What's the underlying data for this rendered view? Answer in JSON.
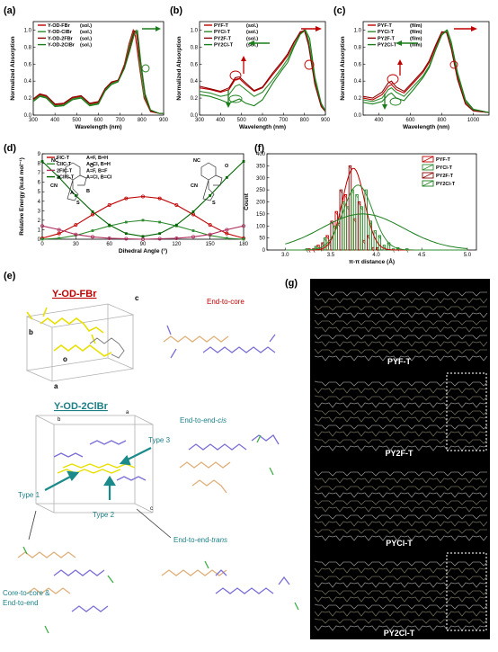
{
  "panel_labels": {
    "a": "(a)",
    "b": "(b)",
    "c": "(c)",
    "d": "(d)",
    "e": "(e)",
    "f": "(f)",
    "g": "(g)"
  },
  "chart_data": [
    {
      "id": "a",
      "type": "line",
      "xlabel": "Wavelength (nm)",
      "ylabel": "Normalized Absorption",
      "xlim": [
        300,
        900
      ],
      "ylim": [
        0,
        1.1
      ],
      "xticks": [
        300,
        400,
        500,
        600,
        700,
        800,
        900
      ],
      "yticks": [
        "0.0",
        "0.2",
        "0.4",
        "0.6",
        "0.8",
        "1.0"
      ],
      "legend_position": "top-left",
      "series": [
        {
          "name": "Y-OD-FBr",
          "tag": "(sol.)",
          "color": "#c00000",
          "x": [
            300,
            330,
            360,
            400,
            440,
            480,
            520,
            560,
            600,
            630,
            660,
            690,
            720,
            740,
            760,
            770,
            790,
            810,
            840,
            880,
            900
          ],
          "y": [
            0.18,
            0.24,
            0.22,
            0.12,
            0.13,
            0.2,
            0.22,
            0.13,
            0.15,
            0.3,
            0.38,
            0.4,
            0.6,
            0.83,
            1.0,
            0.93,
            0.55,
            0.2,
            0.04,
            0.02,
            0.02
          ]
        },
        {
          "name": "Y-OD-ClBr",
          "tag": "(sol.)",
          "color": "#2e8b2e",
          "x": [
            300,
            330,
            360,
            400,
            440,
            480,
            520,
            560,
            600,
            630,
            660,
            690,
            720,
            740,
            760,
            775,
            790,
            810,
            840,
            880,
            900
          ],
          "y": [
            0.17,
            0.23,
            0.21,
            0.11,
            0.12,
            0.19,
            0.21,
            0.12,
            0.14,
            0.29,
            0.37,
            0.4,
            0.58,
            0.8,
            0.97,
            1.0,
            0.6,
            0.22,
            0.05,
            0.02,
            0.02
          ]
        },
        {
          "name": "Y-OD-2FBr",
          "tag": "(sol.)",
          "color": "#8b0000",
          "x": [
            300,
            330,
            360,
            400,
            440,
            480,
            520,
            560,
            600,
            630,
            660,
            690,
            720,
            745,
            765,
            775,
            795,
            815,
            840,
            880,
            900
          ],
          "y": [
            0.19,
            0.25,
            0.23,
            0.13,
            0.14,
            0.21,
            0.23,
            0.14,
            0.16,
            0.31,
            0.39,
            0.41,
            0.57,
            0.8,
            0.99,
            0.97,
            0.6,
            0.22,
            0.05,
            0.02,
            0.02
          ]
        },
        {
          "name": "Y-OD-2ClBr",
          "tag": "(sol.)",
          "color": "#1a7f1a",
          "x": [
            300,
            330,
            360,
            400,
            440,
            480,
            520,
            560,
            600,
            630,
            660,
            690,
            720,
            745,
            765,
            780,
            795,
            815,
            840,
            880,
            900
          ],
          "y": [
            0.16,
            0.22,
            0.2,
            0.1,
            0.11,
            0.18,
            0.2,
            0.11,
            0.13,
            0.28,
            0.36,
            0.39,
            0.55,
            0.76,
            0.95,
            0.99,
            0.63,
            0.25,
            0.06,
            0.02,
            0.02
          ]
        }
      ]
    },
    {
      "id": "b",
      "type": "line",
      "xlabel": "Wavelength (nm)",
      "ylabel": "Normalized Absorption",
      "xlim": [
        300,
        900
      ],
      "ylim": [
        0,
        1.1
      ],
      "xticks": [
        300,
        400,
        500,
        600,
        700,
        800,
        900
      ],
      "yticks": [
        "0.0",
        "0.2",
        "0.4",
        "0.6",
        "0.8",
        "1.0"
      ],
      "legend_position": "top-left",
      "series": [
        {
          "name": "PYF-T",
          "tag": "(sol.)",
          "color": "#c00000",
          "x": [
            300,
            350,
            400,
            440,
            470,
            490,
            520,
            560,
            600,
            650,
            690,
            720,
            750,
            780,
            800,
            820,
            850,
            880,
            900
          ],
          "y": [
            0.32,
            0.3,
            0.27,
            0.3,
            0.42,
            0.43,
            0.36,
            0.28,
            0.32,
            0.48,
            0.6,
            0.7,
            0.85,
            0.98,
            0.99,
            0.85,
            0.4,
            0.12,
            0.05
          ]
        },
        {
          "name": "PYCl-T",
          "tag": "(sol.)",
          "color": "#2e8b2e",
          "x": [
            300,
            350,
            400,
            440,
            470,
            490,
            520,
            560,
            600,
            650,
            690,
            720,
            750,
            780,
            805,
            820,
            850,
            880,
            900
          ],
          "y": [
            0.28,
            0.26,
            0.22,
            0.24,
            0.34,
            0.36,
            0.3,
            0.22,
            0.27,
            0.42,
            0.55,
            0.66,
            0.82,
            0.96,
            1.0,
            0.88,
            0.42,
            0.13,
            0.05
          ]
        },
        {
          "name": "PY2F-T",
          "tag": "(sol.)",
          "color": "#8b0000",
          "x": [
            300,
            350,
            400,
            440,
            470,
            490,
            520,
            560,
            600,
            650,
            690,
            720,
            750,
            780,
            800,
            820,
            850,
            880,
            900
          ],
          "y": [
            0.34,
            0.31,
            0.28,
            0.32,
            0.44,
            0.45,
            0.38,
            0.29,
            0.33,
            0.5,
            0.62,
            0.72,
            0.86,
            0.97,
            1.0,
            0.82,
            0.36,
            0.1,
            0.04
          ]
        },
        {
          "name": "PY2Cl-T",
          "tag": "(sol.)",
          "color": "#1a7f1a",
          "x": [
            300,
            350,
            400,
            440,
            470,
            490,
            520,
            560,
            600,
            650,
            690,
            720,
            750,
            780,
            805,
            825,
            850,
            880,
            900
          ],
          "y": [
            0.24,
            0.22,
            0.18,
            0.14,
            0.17,
            0.19,
            0.14,
            0.11,
            0.18,
            0.38,
            0.52,
            0.62,
            0.8,
            0.95,
            1.0,
            0.9,
            0.45,
            0.14,
            0.05
          ]
        }
      ]
    },
    {
      "id": "c",
      "type": "line",
      "xlabel": "Wavelength (nm)",
      "ylabel": "Normalized Absorption",
      "xlim": [
        300,
        1100
      ],
      "ylim": [
        0,
        1.1
      ],
      "xticks": [
        400,
        600,
        800,
        1000
      ],
      "yticks": [
        "0.0",
        "0.2",
        "0.4",
        "0.6",
        "0.8",
        "1.0"
      ],
      "legend_position": "top-left",
      "series": [
        {
          "name": "PYF-T",
          "tag": "(film)",
          "color": "#c00000",
          "x": [
            300,
            360,
            420,
            460,
            480,
            510,
            560,
            620,
            680,
            720,
            760,
            800,
            830,
            860,
            900,
            950,
            1000,
            1100
          ],
          "y": [
            0.2,
            0.18,
            0.24,
            0.34,
            0.36,
            0.3,
            0.26,
            0.38,
            0.5,
            0.62,
            0.8,
            0.97,
            0.99,
            0.8,
            0.45,
            0.15,
            0.06,
            0.03
          ]
        },
        {
          "name": "PYCl-T",
          "tag": "(film)",
          "color": "#2e8b2e",
          "x": [
            300,
            360,
            420,
            460,
            480,
            510,
            560,
            620,
            680,
            720,
            760,
            800,
            830,
            860,
            900,
            950,
            1000,
            1100
          ],
          "y": [
            0.18,
            0.16,
            0.2,
            0.3,
            0.32,
            0.27,
            0.22,
            0.34,
            0.46,
            0.58,
            0.77,
            0.95,
            1.0,
            0.82,
            0.48,
            0.16,
            0.06,
            0.03
          ]
        },
        {
          "name": "PY2F-T",
          "tag": "(film)",
          "color": "#8b0000",
          "x": [
            300,
            360,
            420,
            460,
            480,
            510,
            560,
            620,
            680,
            720,
            760,
            800,
            830,
            860,
            900,
            950,
            1000,
            1100
          ],
          "y": [
            0.22,
            0.2,
            0.27,
            0.38,
            0.4,
            0.33,
            0.28,
            0.4,
            0.52,
            0.64,
            0.82,
            0.98,
            0.97,
            0.78,
            0.42,
            0.13,
            0.05,
            0.03
          ]
        },
        {
          "name": "PY2Cl-T",
          "tag": "(film)",
          "color": "#1a7f1a",
          "x": [
            300,
            360,
            420,
            460,
            480,
            510,
            560,
            620,
            680,
            720,
            760,
            800,
            835,
            860,
            900,
            950,
            1000,
            1100
          ],
          "y": [
            0.15,
            0.13,
            0.16,
            0.24,
            0.26,
            0.2,
            0.17,
            0.3,
            0.44,
            0.56,
            0.76,
            0.94,
            1.0,
            0.86,
            0.5,
            0.18,
            0.07,
            0.03
          ]
        }
      ]
    },
    {
      "id": "d",
      "type": "line",
      "xlabel": "Dihedral Angle (°)",
      "ylabel": "Relative Energy (kcal mol⁻¹)",
      "xlim": [
        0,
        180
      ],
      "ylim": [
        0,
        9
      ],
      "xticks": [
        0,
        30,
        60,
        90,
        120,
        150,
        180
      ],
      "yticks": [
        0,
        1,
        2,
        3,
        4,
        5,
        6,
        7,
        8,
        9
      ],
      "legend_position": "top-center",
      "series": [
        {
          "name": "FIC-T",
          "label": "A=F, B=H",
          "color": "#c00000",
          "x": [
            0,
            15,
            30,
            45,
            60,
            75,
            90,
            105,
            120,
            135,
            150,
            165,
            180
          ],
          "y": [
            0.1,
            0.6,
            1.5,
            2.6,
            3.6,
            4.3,
            4.5,
            4.3,
            3.6,
            2.6,
            1.5,
            0.6,
            0.1
          ]
        },
        {
          "name": "ClIC-T",
          "label": "A=Cl, B=H",
          "color": "#2e8b2e",
          "x": [
            0,
            15,
            30,
            45,
            60,
            75,
            90,
            105,
            120,
            135,
            150,
            165,
            180
          ],
          "y": [
            0.0,
            0.1,
            0.4,
            0.9,
            1.4,
            1.8,
            2.0,
            1.8,
            1.4,
            0.9,
            0.4,
            0.1,
            0.0
          ]
        },
        {
          "name": "2FIC-T",
          "label": "A=F, B=F",
          "color": "#b03060",
          "x": [
            0,
            15,
            30,
            45,
            60,
            75,
            90,
            105,
            120,
            135,
            150,
            165,
            180
          ],
          "y": [
            1.4,
            1.0,
            0.5,
            0.25,
            0.1,
            0.05,
            0.0,
            0.05,
            0.1,
            0.25,
            0.5,
            1.0,
            1.4
          ]
        },
        {
          "name": "2ClIC-T",
          "label": "A=Cl, B=Cl",
          "color": "#006400",
          "x": [
            0,
            15,
            30,
            45,
            60,
            75,
            90,
            105,
            120,
            135,
            150,
            165,
            180
          ],
          "y": [
            8.2,
            6.5,
            4.6,
            2.9,
            1.5,
            0.6,
            0.3,
            0.6,
            1.5,
            2.9,
            4.6,
            6.5,
            8.2
          ]
        }
      ],
      "annotations": [
        "NC",
        "NC",
        "A",
        "B",
        "S",
        "S",
        "O",
        "O",
        "CN",
        "CN"
      ]
    },
    {
      "id": "f",
      "type": "bar",
      "xlabel": "π-π distance (Å)",
      "ylabel": "Count",
      "xlim": [
        2.8,
        5.1
      ],
      "ylim": [
        0,
        400
      ],
      "xticks": [
        "3.0",
        "3.5",
        "4.0",
        "4.5",
        "5.0"
      ],
      "yticks": [
        0,
        50,
        100,
        150,
        200,
        250,
        300,
        350,
        400
      ],
      "legend_position": "top-right",
      "bin_centers": [
        3.2,
        3.3,
        3.4,
        3.5,
        3.6,
        3.7,
        3.8,
        3.9,
        4.0,
        4.1,
        4.2,
        4.3
      ],
      "series": [
        {
          "name": "PYF-T",
          "color": "#c00000",
          "values": [
            0,
            5,
            20,
            60,
            160,
            230,
            130,
            40,
            10,
            0,
            0,
            0
          ]
        },
        {
          "name": "PYCl-T",
          "color": "#2e8b2e",
          "values": [
            0,
            0,
            10,
            30,
            110,
            180,
            230,
            250,
            80,
            20,
            5,
            0
          ]
        },
        {
          "name": "PY2F-T",
          "color": "#8b0000",
          "values": [
            0,
            5,
            30,
            120,
            250,
            350,
            200,
            60,
            10,
            0,
            0,
            0
          ]
        },
        {
          "name": "PY2Cl-T",
          "color": "#1a7f1a",
          "values": [
            5,
            15,
            50,
            100,
            200,
            250,
            180,
            120,
            60,
            30,
            10,
            5
          ]
        }
      ],
      "fits": [
        {
          "color": "#c00000",
          "center": 3.75,
          "height": 340,
          "width": 0.12
        },
        {
          "color": "#2e8b2e",
          "center": 3.8,
          "height": 270,
          "width": 0.16
        },
        {
          "color": "#1a7f1a",
          "center": 3.85,
          "height": 150,
          "width": 0.45
        }
      ]
    }
  ],
  "panel_e": {
    "title1": "Y-OD-FBr",
    "title2": "Y-OD-2ClBr",
    "axis_a": "a",
    "axis_b": "b",
    "axis_c": "c",
    "axis_o": "o",
    "end_to_core": "End-to-core",
    "end_cis_pre": "End-to-end-",
    "end_cis_it": "cis",
    "end_trans_pre": "End-to-end-",
    "end_trans_it": "trans",
    "type1": "Type 1",
    "type2": "Type 2",
    "type3": "Type 3",
    "core_to_core_1": "Core-to-core &",
    "core_to_core_2": "End-to-end"
  },
  "panel_g": {
    "labels": [
      "PYF-T",
      "PY2F-T",
      "PYCl-T",
      "PY2Cl-T"
    ]
  },
  "colors": {
    "red": "#c00000",
    "green": "#2e8b2e",
    "teal": "#1b7f86",
    "dark": "#000000",
    "title_red": "#c00000"
  }
}
